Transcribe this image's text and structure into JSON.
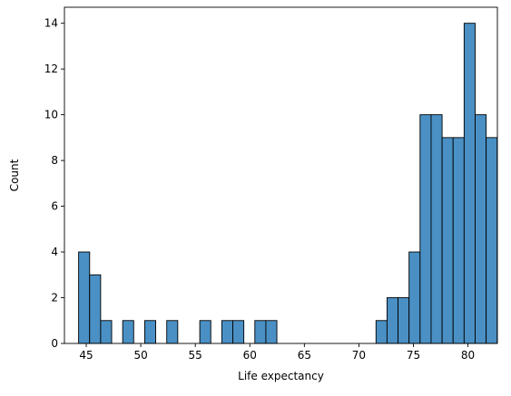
{
  "chart_data": {
    "type": "bar",
    "subtype": "histogram",
    "xlabel": "Life expectancy",
    "ylabel": "Count",
    "xlim": [
      43.0,
      82.7
    ],
    "ylim": [
      0,
      14.7
    ],
    "xticks": [
      45,
      50,
      55,
      60,
      65,
      70,
      75,
      80
    ],
    "yticks": [
      0,
      2,
      4,
      6,
      8,
      10,
      12,
      14
    ],
    "bar_color": "#4a90c4",
    "bar_edge_color": "#000000",
    "grid": false,
    "bins": [
      {
        "x0": 44.3,
        "x1": 45.31,
        "count": 4
      },
      {
        "x0": 45.31,
        "x1": 46.32,
        "count": 3
      },
      {
        "x0": 46.32,
        "x1": 47.33,
        "count": 1
      },
      {
        "x0": 47.33,
        "x1": 48.34,
        "count": 0
      },
      {
        "x0": 48.34,
        "x1": 49.35,
        "count": 1
      },
      {
        "x0": 49.35,
        "x1": 50.36,
        "count": 0
      },
      {
        "x0": 50.36,
        "x1": 51.37,
        "count": 1
      },
      {
        "x0": 51.37,
        "x1": 52.38,
        "count": 0
      },
      {
        "x0": 52.38,
        "x1": 53.39,
        "count": 1
      },
      {
        "x0": 53.39,
        "x1": 54.4,
        "count": 0
      },
      {
        "x0": 54.4,
        "x1": 55.41,
        "count": 0
      },
      {
        "x0": 55.41,
        "x1": 56.42,
        "count": 1
      },
      {
        "x0": 56.42,
        "x1": 57.43,
        "count": 0
      },
      {
        "x0": 57.43,
        "x1": 58.44,
        "count": 1
      },
      {
        "x0": 58.44,
        "x1": 59.45,
        "count": 1
      },
      {
        "x0": 59.45,
        "x1": 60.46,
        "count": 0
      },
      {
        "x0": 60.46,
        "x1": 61.47,
        "count": 1
      },
      {
        "x0": 61.47,
        "x1": 62.48,
        "count": 1
      },
      {
        "x0": 62.48,
        "x1": 63.49,
        "count": 0
      },
      {
        "x0": 63.49,
        "x1": 64.5,
        "count": 0
      },
      {
        "x0": 64.5,
        "x1": 65.51,
        "count": 0
      },
      {
        "x0": 65.51,
        "x1": 66.52,
        "count": 0
      },
      {
        "x0": 66.52,
        "x1": 67.53,
        "count": 0
      },
      {
        "x0": 67.53,
        "x1": 68.54,
        "count": 0
      },
      {
        "x0": 68.54,
        "x1": 69.55,
        "count": 0
      },
      {
        "x0": 69.55,
        "x1": 70.56,
        "count": 0
      },
      {
        "x0": 70.56,
        "x1": 71.57,
        "count": 0
      },
      {
        "x0": 71.57,
        "x1": 72.58,
        "count": 1
      },
      {
        "x0": 72.58,
        "x1": 73.59,
        "count": 2
      },
      {
        "x0": 73.59,
        "x1": 74.6,
        "count": 2
      },
      {
        "x0": 74.6,
        "x1": 75.61,
        "count": 4
      },
      {
        "x0": 75.61,
        "x1": 76.62,
        "count": 10
      },
      {
        "x0": 76.62,
        "x1": 77.63,
        "count": 10
      },
      {
        "x0": 77.63,
        "x1": 78.64,
        "count": 9
      },
      {
        "x0": 78.64,
        "x1": 79.65,
        "count": 9
      },
      {
        "x0": 79.65,
        "x1": 80.66,
        "count": 14
      },
      {
        "x0": 80.66,
        "x1": 81.67,
        "count": 10
      },
      {
        "x0": 81.67,
        "x1": 82.68,
        "count": 9
      }
    ]
  }
}
